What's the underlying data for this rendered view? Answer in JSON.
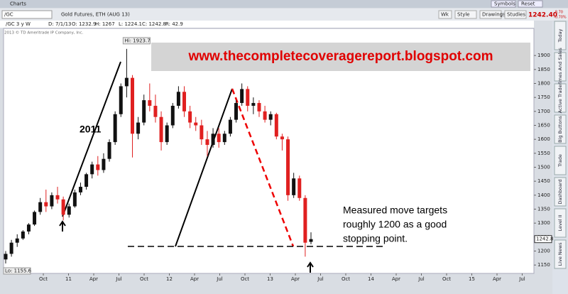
{
  "window": {
    "title": "Charts",
    "symbol": "/GC",
    "description": "Gold Futures, ETH (AUG 13)",
    "buttons": [
      "Symbols",
      "Reset"
    ],
    "toolbar": [
      "Wk",
      "Style",
      "Drawings",
      "Studies"
    ],
    "price": "1242.40",
    "change": "-8.70",
    "change_pct": "-0.70%"
  },
  "info": {
    "symbol": "/GC 3 y W",
    "fields": [
      "D: 7/1/13",
      "O: 1232.9",
      "H: 1267",
      "L: 1224.1",
      "C: 1242.8",
      "R: 42.9"
    ],
    "copyright": "2013 © TD Ameritrade IP Company, Inc."
  },
  "side_tabs": [
    "Today",
    "Times And Sales",
    "Active Trader",
    "Big Buttons",
    "Trade",
    "Dashboard",
    "Level II",
    "Live News"
  ],
  "chart_data": {
    "type": "candlestick",
    "open": [
      1170,
      1190,
      1230,
      1245,
      1270,
      1295,
      1340,
      1375,
      1360,
      1400,
      1385,
      1330,
      1360,
      1410,
      1430,
      1475,
      1510,
      1490,
      1530,
      1590,
      1690,
      1790,
      1820,
      1620,
      1660,
      1740,
      1720,
      1680,
      1590,
      1650,
      1720,
      1770,
      1700,
      1660,
      1650,
      1600,
      1580,
      1620,
      1590,
      1620,
      1670,
      1730,
      1780,
      1720,
      1730,
      1700,
      1670,
      1690,
      1610,
      1600,
      1400,
      1460,
      1390,
      1232.9
    ],
    "high": [
      1200,
      1240,
      1260,
      1275,
      1300,
      1345,
      1390,
      1420,
      1410,
      1430,
      1395,
      1370,
      1420,
      1445,
      1480,
      1520,
      1540,
      1550,
      1600,
      1700,
      1800,
      1923.7,
      1830,
      1680,
      1760,
      1800,
      1760,
      1700,
      1660,
      1730,
      1790,
      1790,
      1720,
      1680,
      1670,
      1630,
      1640,
      1640,
      1630,
      1680,
      1740,
      1800,
      1790,
      1750,
      1740,
      1720,
      1700,
      1695,
      1620,
      1610,
      1480,
      1470,
      1400,
      1267
    ],
    "low": [
      1155.6,
      1180,
      1215,
      1240,
      1260,
      1290,
      1330,
      1340,
      1350,
      1370,
      1310,
      1320,
      1355,
      1400,
      1420,
      1460,
      1470,
      1480,
      1520,
      1580,
      1680,
      1750,
      1535,
      1600,
      1650,
      1700,
      1660,
      1560,
      1580,
      1640,
      1710,
      1680,
      1640,
      1630,
      1580,
      1540,
      1570,
      1570,
      1580,
      1610,
      1660,
      1720,
      1700,
      1690,
      1680,
      1660,
      1650,
      1600,
      1560,
      1380,
      1390,
      1380,
      1180,
      1224.1
    ],
    "close": [
      1190,
      1230,
      1245,
      1270,
      1295,
      1340,
      1375,
      1360,
      1400,
      1385,
      1330,
      1360,
      1410,
      1430,
      1475,
      1510,
      1490,
      1530,
      1590,
      1690,
      1790,
      1820,
      1620,
      1660,
      1740,
      1720,
      1680,
      1590,
      1650,
      1720,
      1770,
      1700,
      1660,
      1650,
      1600,
      1580,
      1620,
      1590,
      1620,
      1670,
      1730,
      1780,
      1720,
      1730,
      1700,
      1670,
      1690,
      1610,
      1600,
      1400,
      1460,
      1390,
      1230,
      1242.8
    ],
    "up_color": "#111111",
    "down_color": "#e02020",
    "ylim": [
      1120,
      1997
    ],
    "yticks": [
      1150,
      1200,
      1250,
      1300,
      1350,
      1400,
      1450,
      1500,
      1550,
      1600,
      1650,
      1700,
      1750,
      1800,
      1850,
      1900
    ],
    "xlabels": [
      "Oct",
      "11",
      "Apr",
      "Jul",
      "Oct",
      "12",
      "Apr",
      "Jul",
      "Oct",
      "13",
      "Apr",
      "Jul",
      "Oct",
      "14",
      "Apr",
      "Jul",
      "Oct",
      "15",
      "Apr",
      "Jul"
    ],
    "last_label": "1242.8",
    "high_label": "Hi: 1923.7",
    "low_label": "Lo: 1155.6",
    "banner": "www.thecompletecoveragereport.blogspot.com",
    "year_note": "2011",
    "note": [
      "Measured move targets",
      "roughly 1200 as a good",
      "stopping point."
    ]
  }
}
